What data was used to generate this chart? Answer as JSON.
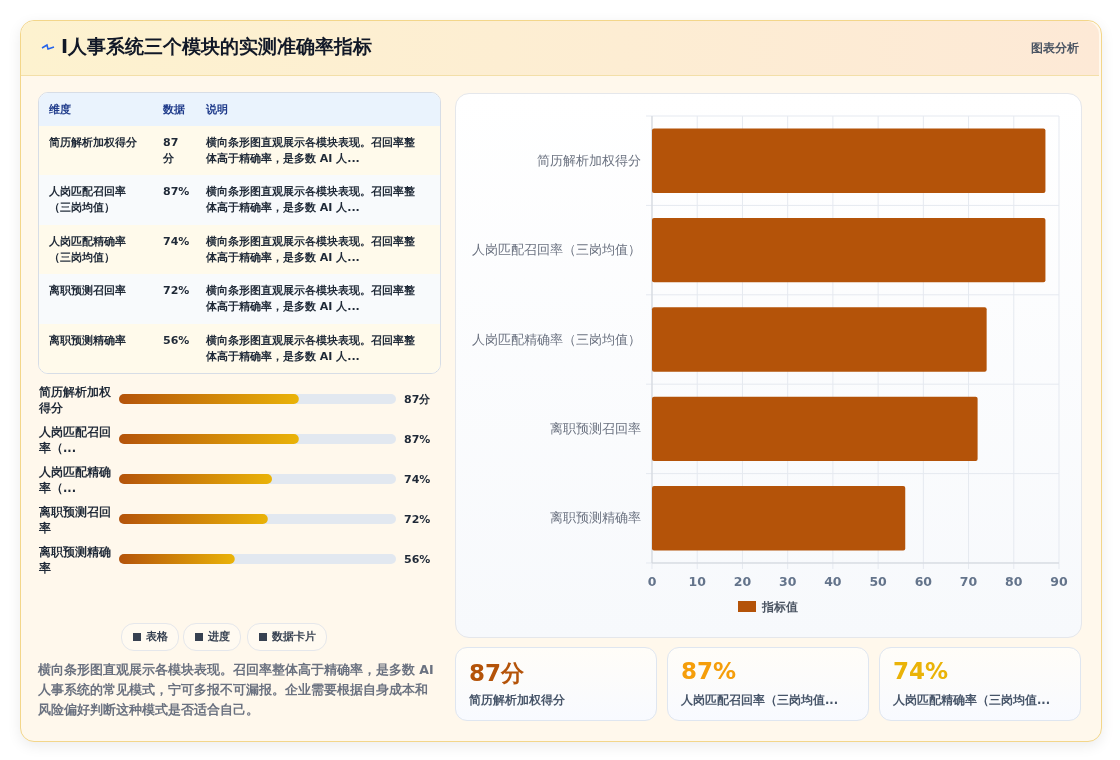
{
  "chart_data": [
    {
      "type": "other",
      "title": "I人事系统三个模块的实测准确率指标",
      "annotations": [
        "图表分析",
        "表格",
        "进度",
        "数据卡片",
        "横向条形图直观展示各模块表现。召回率整体高于精确率，是多数 AI 人事系统的常见模式，宁可多报不可漏报。企业需要根据自身成本和风险偏好判断这种模式是否适合自己。"
      ]
    },
    {
      "type": "other",
      "annotations": [
        "维度",
        "数据",
        "说明",
        "简历解析加权得分",
        "87 分",
        "横向条形图直观展示各模块表现。召回率整体高于精确率，是多数 AI 人...",
        "人岗匹配召回率（三岗均值）",
        "87%",
        "横向条形图直观展示各模块表现。召回率整体高于精确率，是多数 AI 人...",
        "人岗匹配精确率（三岗均值）",
        "74%",
        "横向条形图直观展示各模块表现。召回率整体高于精确率，是多数 AI 人...",
        "离职预测召回率",
        "72%",
        "横向条形图直观展示各模块表现。召回率整体高于精确率，是多数 AI 人...",
        "离职预测精确率",
        "56%",
        "横向条形图直观展示各模块表现。召回率整体高于精确率，是多数 AI 人..."
      ]
    },
    {
      "type": "bar",
      "orientation": "horizontal",
      "categories": [
        "简历解析加权得分",
        "人岗匹配召回率（...",
        "人岗匹配精确率（...",
        "离职预测召回率",
        "离职预测精确率"
      ],
      "values": [
        87,
        87,
        74,
        72,
        56
      ],
      "value_labels": [
        "87分",
        "87%",
        "74%",
        "72%",
        "56%"
      ],
      "color": "#b45309",
      "xlim": [
        0,
        134
      ]
    },
    {
      "type": "bar",
      "orientation": "horizontal",
      "categories": [
        "简历解析加权得分",
        "人岗匹配召回率（三岗均值）",
        "人岗匹配精确率（三岗均值）",
        "离职预测召回率",
        "离职预测精确率"
      ],
      "series": [
        {
          "name": "指标值",
          "color": "#b45309",
          "values": [
            87,
            87,
            74,
            72,
            56
          ]
        }
      ],
      "xlim": [
        0,
        90
      ],
      "xticks": [
        0,
        10,
        20,
        30,
        40,
        50,
        60,
        70,
        80,
        90
      ],
      "grid": true,
      "legend": "bottom"
    },
    {
      "type": "other",
      "annotations": [
        "87分",
        "简历解析加权得分",
        "87%",
        "人岗匹配召回率（三岗均值...",
        "74%",
        "人岗匹配精确率（三岗均值..."
      ]
    }
  ]
}
